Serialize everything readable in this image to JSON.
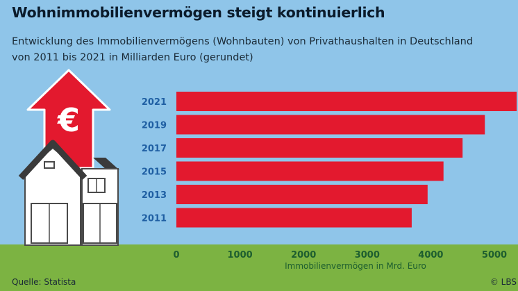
{
  "header": {
    "title": "Wohnimmobilienvermögen steigt kontinuierlich",
    "subtitle_line1": "Entwicklung des Immobilienvermögens (Wohnbauten) von Privathaushalten in Deutschland",
    "subtitle_line2": "von 2011 bis 2021 in Milliarden Euro (gerundet)"
  },
  "footer": {
    "source": "Quelle: Statista",
    "copyright": "© LBS"
  },
  "illustration": {
    "icon": "house-with-euro-arrow-icon",
    "symbol": "€"
  },
  "colors": {
    "background": "#8fc5e9",
    "bars": "#e3192e",
    "ground": "#7cb342",
    "year_labels": "#1f5fa3",
    "ticks": "#1d5e2f"
  },
  "chart_data": {
    "type": "bar",
    "orientation": "horizontal",
    "categories": [
      "2021",
      "2019",
      "2017",
      "2015",
      "2013",
      "2011"
    ],
    "values": [
      5350,
      4850,
      4500,
      4200,
      3950,
      3700
    ],
    "xlabel": "Immobilienvermögen in Mrd. Euro",
    "ylabel": "",
    "xlim": [
      0,
      5400
    ],
    "xticks": [
      0,
      1000,
      2000,
      3000,
      4000,
      5000
    ],
    "grid": false,
    "legend": "none"
  }
}
